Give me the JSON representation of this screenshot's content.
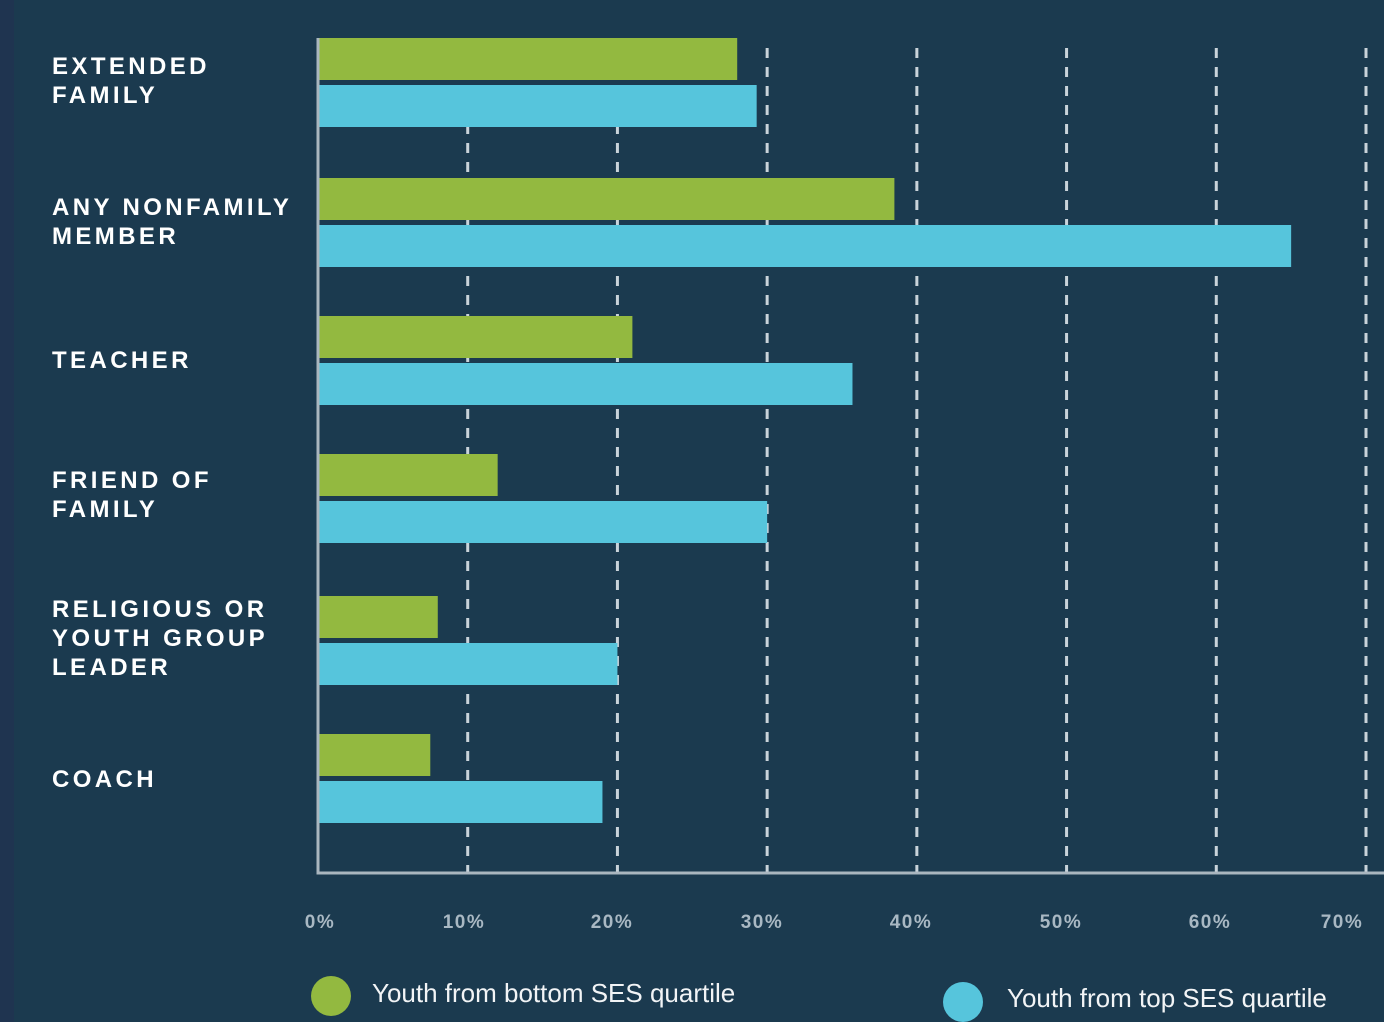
{
  "chart_data": {
    "type": "bar",
    "orientation": "horizontal",
    "categories": [
      "EXTENDED\nFAMILY",
      "ANY NONFAMILY\nMEMBER",
      "TEACHER",
      "FRIEND OF\nFAMILY",
      "RELIGIOUS OR\nYOUTH GROUP\nLEADER",
      "COACH"
    ],
    "series": [
      {
        "name": "Youth from bottom SES quartile",
        "color": "#93b940",
        "values": [
          28,
          38.5,
          21,
          12,
          8,
          7.5
        ]
      },
      {
        "name": "Youth from top SES quartile",
        "color": "#56c5dc",
        "values": [
          29.3,
          65,
          35.7,
          30,
          20,
          19
        ]
      }
    ],
    "xlim": [
      0,
      70
    ],
    "xticks": [
      "0%",
      "10%",
      "20%",
      "30%",
      "40%",
      "50%",
      "60%",
      "70%"
    ],
    "grid": "vertical dashed",
    "legend": "bottom",
    "colors": {
      "background": "#1b3a4f",
      "grid": "#c9d3da",
      "axis": "#aab6bf"
    }
  }
}
